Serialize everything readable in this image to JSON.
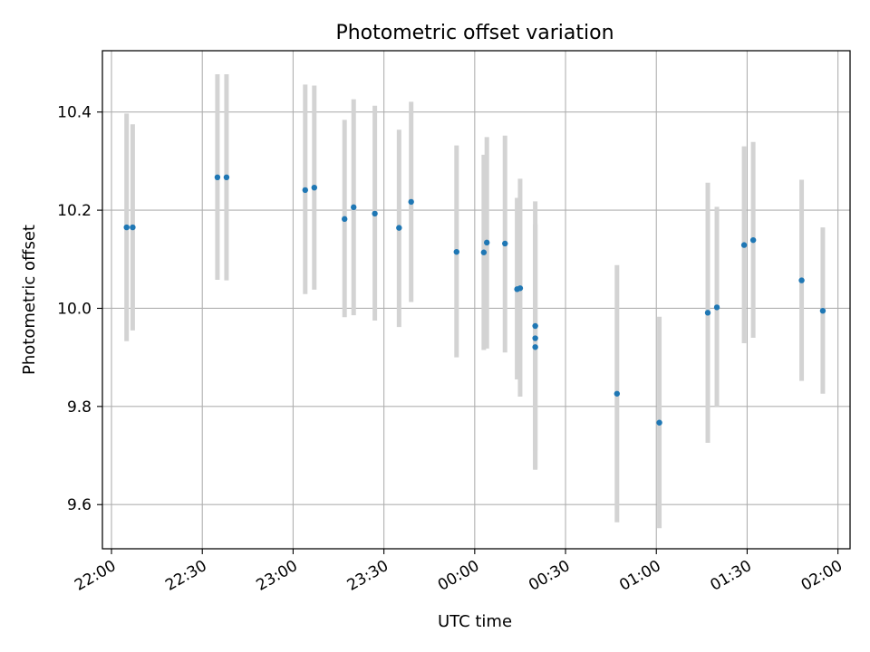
{
  "chart_data": {
    "type": "scatter",
    "title": "Photometric offset variation",
    "xlabel": "UTC time",
    "ylabel": "Photometric offset",
    "x_axis_kind": "time",
    "xlim": [
      "21:57",
      "02:04"
    ],
    "ylim": [
      9.51,
      10.525
    ],
    "x_ticks": [
      "22:00",
      "22:30",
      "23:00",
      "23:30",
      "00:00",
      "00:30",
      "01:00",
      "01:30",
      "02:00"
    ],
    "y_ticks": [
      9.6,
      9.8,
      10.0,
      10.2,
      10.4
    ],
    "y_tick_labels": [
      "9.6",
      "9.8",
      "10.0",
      "10.2",
      "10.4"
    ],
    "grid": true,
    "marker_color": "#1f77b4",
    "errorbar_color": "#d3d3d3",
    "points": [
      {
        "t": "22:05",
        "y": 10.165,
        "ylo": 9.933,
        "yhi": 10.397
      },
      {
        "t": "22:07",
        "y": 10.165,
        "ylo": 9.955,
        "yhi": 10.375
      },
      {
        "t": "22:35",
        "y": 10.267,
        "ylo": 10.058,
        "yhi": 10.477
      },
      {
        "t": "22:38",
        "y": 10.267,
        "ylo": 10.057,
        "yhi": 10.477
      },
      {
        "t": "23:04",
        "y": 10.241,
        "ylo": 10.029,
        "yhi": 10.456
      },
      {
        "t": "23:07",
        "y": 10.246,
        "ylo": 10.038,
        "yhi": 10.454
      },
      {
        "t": "23:17",
        "y": 10.182,
        "ylo": 9.982,
        "yhi": 10.384
      },
      {
        "t": "23:20",
        "y": 10.206,
        "ylo": 9.986,
        "yhi": 10.426
      },
      {
        "t": "23:27",
        "y": 10.193,
        "ylo": 9.975,
        "yhi": 10.413
      },
      {
        "t": "23:35",
        "y": 10.164,
        "ylo": 9.962,
        "yhi": 10.364
      },
      {
        "t": "23:39",
        "y": 10.217,
        "ylo": 10.013,
        "yhi": 10.421
      },
      {
        "t": "23:54",
        "y": 10.115,
        "ylo": 9.9,
        "yhi": 10.332
      },
      {
        "t": "00:03",
        "y": 10.114,
        "ylo": 9.915,
        "yhi": 10.313
      },
      {
        "t": "00:04",
        "y": 10.134,
        "ylo": 9.918,
        "yhi": 10.349
      },
      {
        "t": "00:10",
        "y": 10.132,
        "ylo": 9.91,
        "yhi": 10.352
      },
      {
        "t": "00:14",
        "y": 10.039,
        "ylo": 9.855,
        "yhi": 10.225
      },
      {
        "t": "00:15",
        "y": 10.041,
        "ylo": 9.82,
        "yhi": 10.264
      },
      {
        "t": "00:20",
        "y": 9.939,
        "ylo": 9.673,
        "yhi": 10.171
      },
      {
        "t": "00:20",
        "y": 9.921,
        "ylo": 9.671,
        "yhi": 10.171
      },
      {
        "t": "00:20",
        "y": 9.964,
        "ylo": 9.71,
        "yhi": 10.218
      },
      {
        "t": "00:47",
        "y": 9.826,
        "ylo": 9.564,
        "yhi": 10.088
      },
      {
        "t": "01:01",
        "y": 9.767,
        "ylo": 9.552,
        "yhi": 9.983
      },
      {
        "t": "01:17",
        "y": 9.991,
        "ylo": 9.726,
        "yhi": 10.256
      },
      {
        "t": "01:20",
        "y": 10.002,
        "ylo": 9.8,
        "yhi": 10.207
      },
      {
        "t": "01:29",
        "y": 10.129,
        "ylo": 9.929,
        "yhi": 10.33
      },
      {
        "t": "01:32",
        "y": 10.139,
        "ylo": 9.94,
        "yhi": 10.339
      },
      {
        "t": "01:48",
        "y": 10.057,
        "ylo": 9.852,
        "yhi": 10.262
      },
      {
        "t": "01:55",
        "y": 9.995,
        "ylo": 9.826,
        "yhi": 10.165
      }
    ]
  }
}
